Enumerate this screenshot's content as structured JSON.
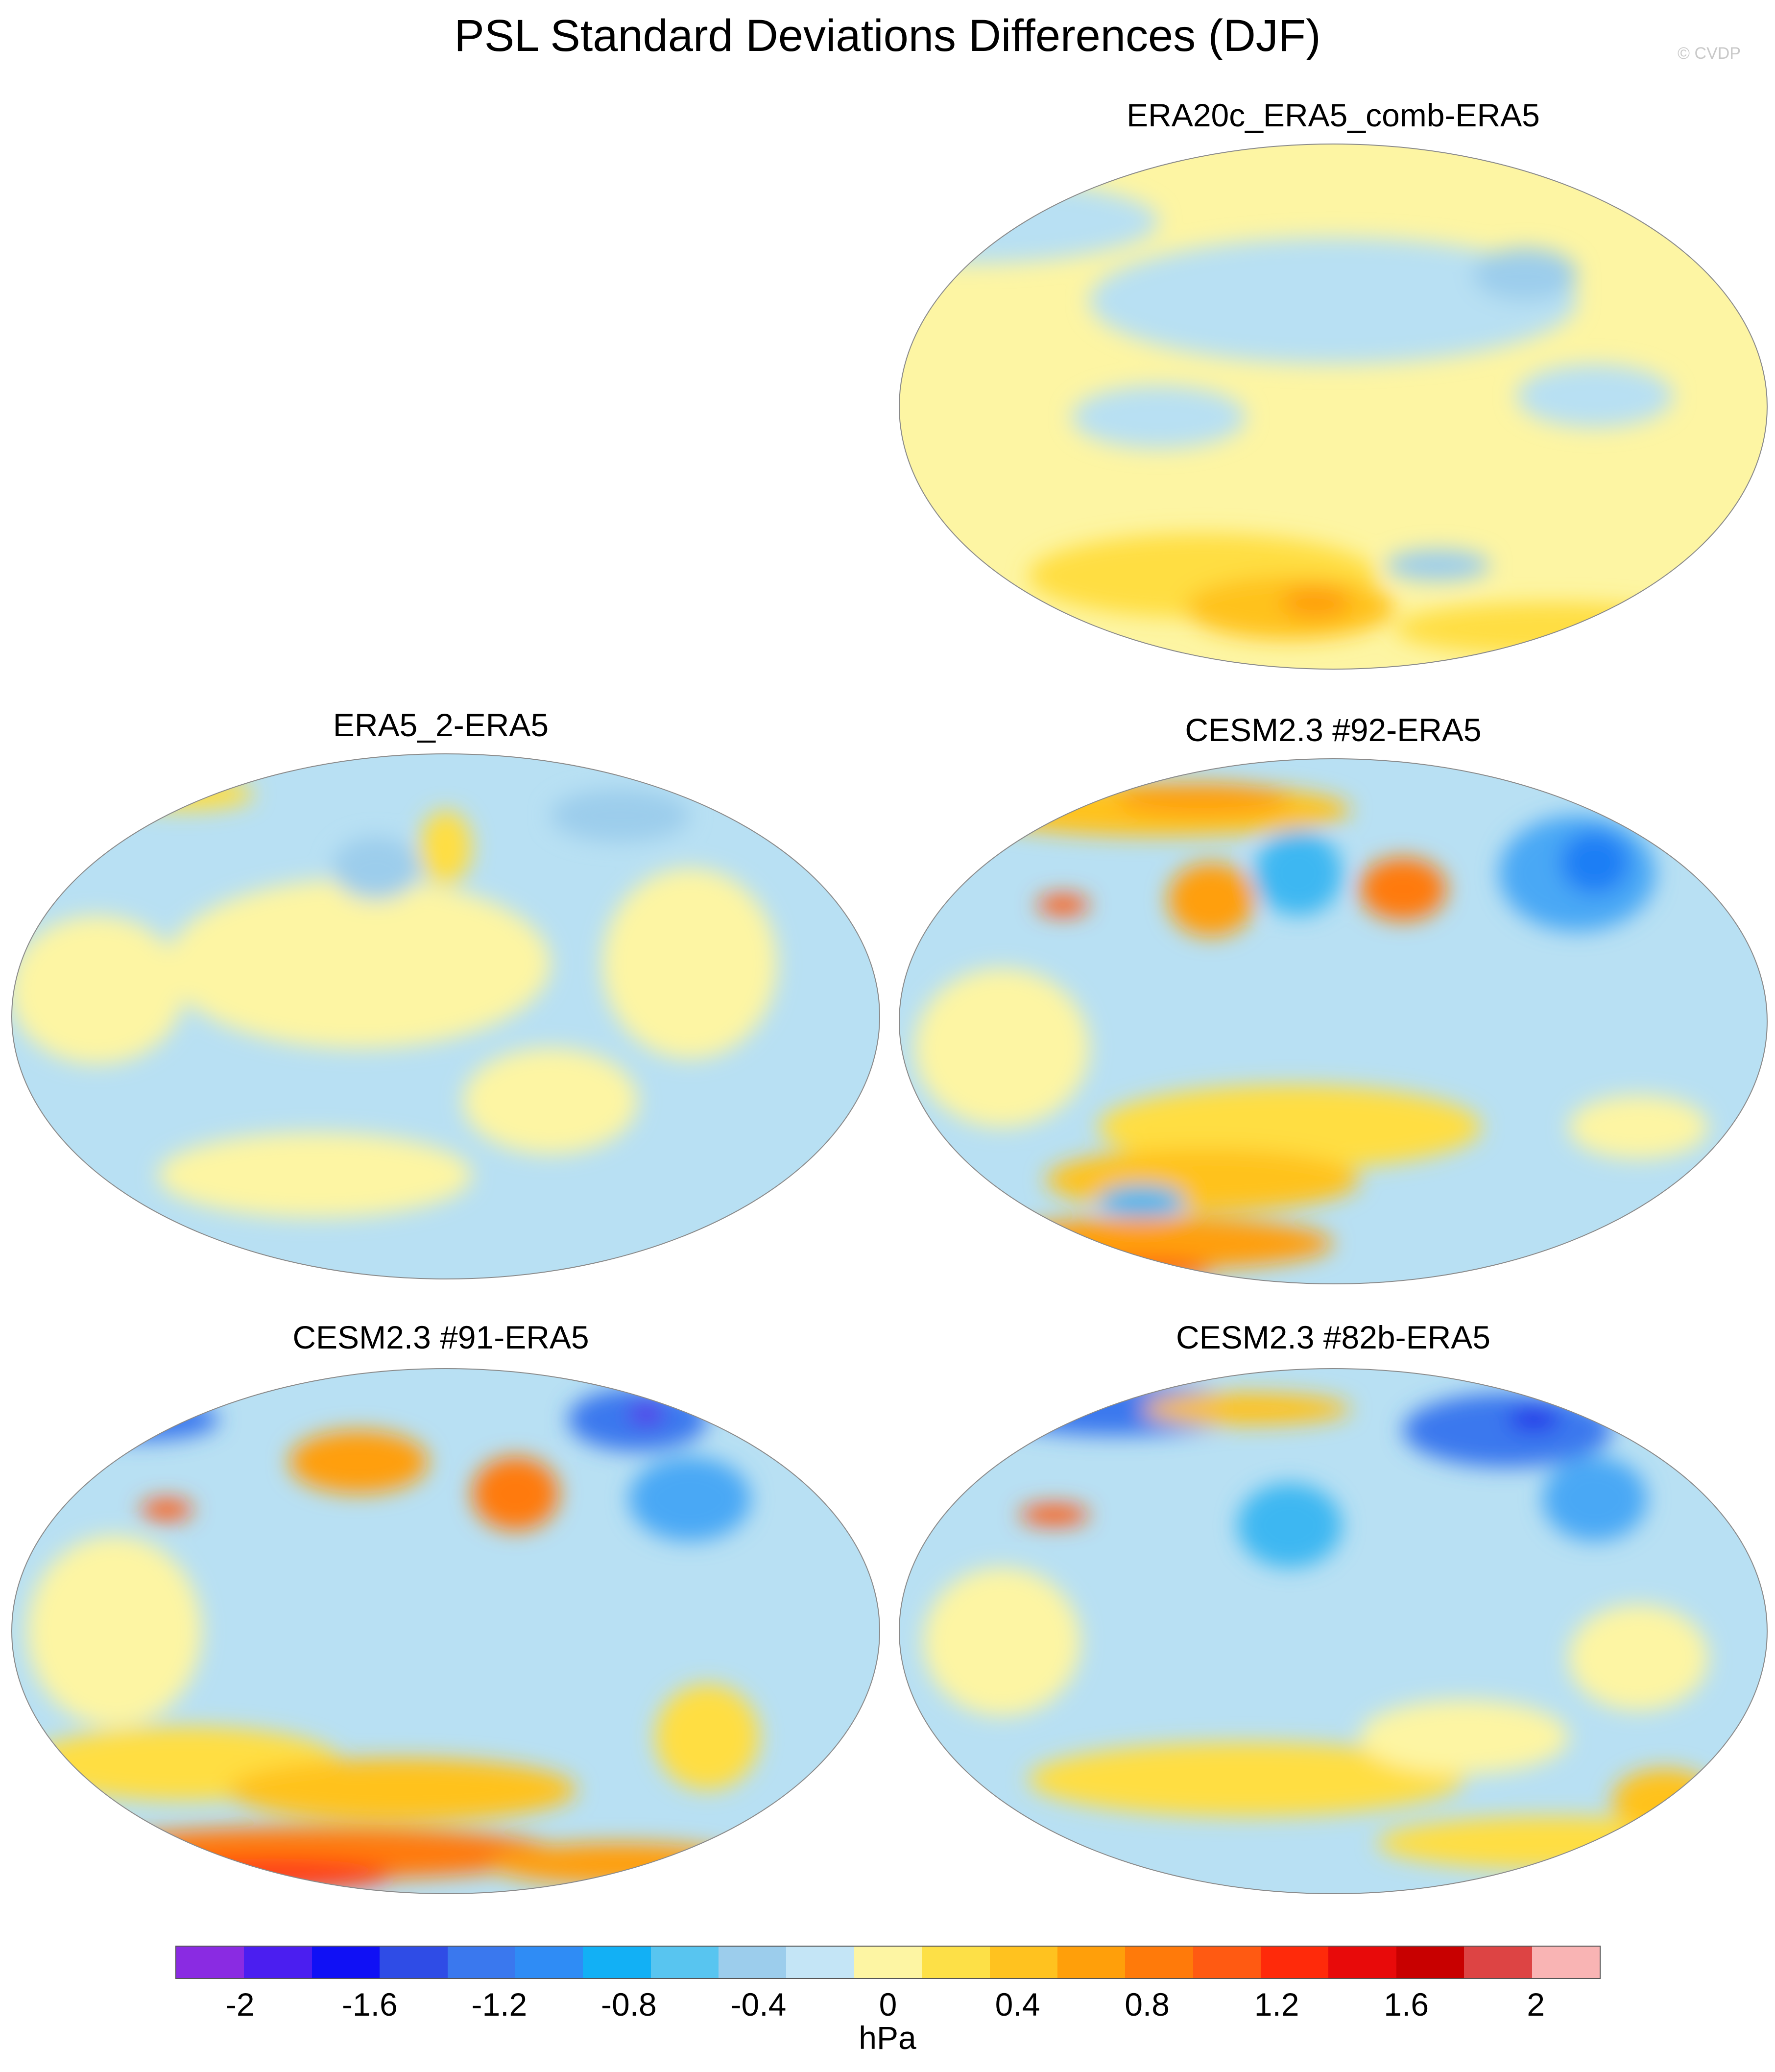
{
  "title": "PSL Standard Deviations Differences (DJF)",
  "credit": "© CVDP",
  "panels": [
    {
      "id": "p1",
      "title": "ERA20c_ERA5_comb-ERA5",
      "base": "#fdf5a3",
      "blobs": [
        [
          "#b8e0f3",
          0.08,
          0.15,
          0.22,
          0.08
        ],
        [
          "#b8e0f3",
          0.5,
          0.3,
          0.28,
          0.12
        ],
        [
          "#9ccdec",
          0.72,
          0.25,
          0.06,
          0.05
        ],
        [
          "#b8e0f3",
          0.3,
          0.52,
          0.1,
          0.06
        ],
        [
          "#b8e0f3",
          0.8,
          0.48,
          0.09,
          0.06
        ],
        [
          "#ffde42",
          0.35,
          0.82,
          0.2,
          0.08
        ],
        [
          "#ffc21f",
          0.45,
          0.88,
          0.12,
          0.06
        ],
        [
          "#ff9f0a",
          0.48,
          0.87,
          0.04,
          0.03
        ],
        [
          "#9ccdec",
          0.62,
          0.8,
          0.06,
          0.03
        ],
        [
          "#ffde42",
          0.75,
          0.92,
          0.18,
          0.05
        ]
      ]
    },
    {
      "id": "p2",
      "title": "ERA5_2-ERA5",
      "base": "#b8e0f3",
      "blobs": [
        [
          "#fdf5a3",
          0.4,
          0.4,
          0.22,
          0.16
        ],
        [
          "#fdf5a3",
          0.1,
          0.45,
          0.1,
          0.14
        ],
        [
          "#fdf5a3",
          0.62,
          0.66,
          0.1,
          0.1
        ],
        [
          "#fdf5a3",
          0.78,
          0.4,
          0.1,
          0.18
        ],
        [
          "#ffde42",
          0.5,
          0.18,
          0.03,
          0.07
        ],
        [
          "#9ccdec",
          0.42,
          0.22,
          0.05,
          0.06
        ],
        [
          "#9ccdec",
          0.7,
          0.12,
          0.08,
          0.05
        ],
        [
          "#fdf5a3",
          0.35,
          0.8,
          0.18,
          0.08
        ],
        [
          "#ffde42",
          0.2,
          0.08,
          0.08,
          0.03
        ]
      ]
    },
    {
      "id": "p3",
      "title": "CESM2.3 #92-ERA5",
      "base": "#b8e0f3",
      "blobs": [
        [
          "#ffc21f",
          0.3,
          0.1,
          0.22,
          0.05
        ],
        [
          "#ff9f0a",
          0.35,
          0.08,
          0.1,
          0.03
        ],
        [
          "#ff9f0a",
          0.36,
          0.27,
          0.05,
          0.07
        ],
        [
          "#3cb7f2",
          0.46,
          0.22,
          0.05,
          0.08
        ],
        [
          "#ff7a0a",
          0.58,
          0.25,
          0.05,
          0.06
        ],
        [
          "#4aa8f5",
          0.78,
          0.22,
          0.09,
          0.11
        ],
        [
          "#1e7ef5",
          0.8,
          0.2,
          0.04,
          0.06
        ],
        [
          "#ff5a12",
          0.19,
          0.28,
          0.03,
          0.02
        ],
        [
          "#fdf5a3",
          0.12,
          0.55,
          0.1,
          0.15
        ],
        [
          "#ffde42",
          0.45,
          0.7,
          0.22,
          0.08
        ],
        [
          "#ffc21f",
          0.35,
          0.8,
          0.18,
          0.06
        ],
        [
          "#ff9f0a",
          0.3,
          0.92,
          0.2,
          0.05
        ],
        [
          "#ff5a12",
          0.28,
          0.97,
          0.08,
          0.02
        ],
        [
          "#3cb7f2",
          0.28,
          0.84,
          0.05,
          0.03
        ],
        [
          "#fdf5a3",
          0.85,
          0.7,
          0.08,
          0.06
        ]
      ]
    },
    {
      "id": "p4",
      "title": "CESM2.3 #91-ERA5",
      "base": "#b8e0f3",
      "blobs": [
        [
          "#3a78ee",
          0.15,
          0.1,
          0.09,
          0.04
        ],
        [
          "#ff9f0a",
          0.4,
          0.18,
          0.08,
          0.06
        ],
        [
          "#ff7a0a",
          0.58,
          0.24,
          0.05,
          0.07
        ],
        [
          "#3a78ee",
          0.72,
          0.1,
          0.08,
          0.06
        ],
        [
          "#5a2be8",
          0.73,
          0.09,
          0.02,
          0.02
        ],
        [
          "#4aa8f5",
          0.78,
          0.25,
          0.07,
          0.08
        ],
        [
          "#ff5a12",
          0.18,
          0.27,
          0.03,
          0.02
        ],
        [
          "#fdf5a3",
          0.12,
          0.5,
          0.1,
          0.18
        ],
        [
          "#ffde42",
          0.2,
          0.75,
          0.18,
          0.07
        ],
        [
          "#ffc21f",
          0.45,
          0.8,
          0.2,
          0.06
        ],
        [
          "#ff7a0a",
          0.35,
          0.92,
          0.28,
          0.05
        ],
        [
          "#ff3b12",
          0.3,
          0.96,
          0.14,
          0.03
        ],
        [
          "#ffde42",
          0.8,
          0.7,
          0.06,
          0.1
        ],
        [
          "#ff9f0a",
          0.7,
          0.94,
          0.15,
          0.04
        ]
      ]
    },
    {
      "id": "p5",
      "title": "CESM2.3 #82b-ERA5",
      "base": "#b8e0f3",
      "blobs": [
        [
          "#3a78ee",
          0.25,
          0.08,
          0.15,
          0.05
        ],
        [
          "#3a78ee",
          0.7,
          0.12,
          0.12,
          0.07
        ],
        [
          "#2020e8",
          0.73,
          0.1,
          0.03,
          0.02
        ],
        [
          "#4aa8f5",
          0.8,
          0.25,
          0.06,
          0.08
        ],
        [
          "#ffc21f",
          0.4,
          0.08,
          0.12,
          0.03
        ],
        [
          "#ff5a12",
          0.18,
          0.28,
          0.04,
          0.02
        ],
        [
          "#3cb7f2",
          0.45,
          0.3,
          0.06,
          0.08
        ],
        [
          "#fdf5a3",
          0.12,
          0.52,
          0.09,
          0.14
        ],
        [
          "#ffde42",
          0.4,
          0.78,
          0.25,
          0.07
        ],
        [
          "#fdf5a3",
          0.65,
          0.7,
          0.12,
          0.07
        ],
        [
          "#ffde42",
          0.75,
          0.9,
          0.2,
          0.05
        ],
        [
          "#ffc21f",
          0.88,
          0.82,
          0.06,
          0.06
        ],
        [
          "#fdf5a3",
          0.85,
          0.55,
          0.08,
          0.1
        ]
      ]
    }
  ],
  "colorbar": {
    "colors": [
      "#8a2be2",
      "#4b1ef0",
      "#1010f5",
      "#2f4ce6",
      "#3a78ee",
      "#2f8cf5",
      "#12b0f5",
      "#58c5f0",
      "#9ccdec",
      "#c4e5f6",
      "#fdf5a3",
      "#fde047",
      "#ffc21f",
      "#ff9f0a",
      "#ff7a0a",
      "#ff5a12",
      "#ff2a0a",
      "#e80a0a",
      "#c80000",
      "#dd4444",
      "#f9b4b4"
    ],
    "tick_labels": [
      "-2",
      "-1.6",
      "-1.2",
      "-0.8",
      "-0.4",
      "0",
      "0.4",
      "0.8",
      "1.2",
      "1.6",
      "2"
    ],
    "tick_values": [
      -2,
      -1.6,
      -1.2,
      -0.8,
      -0.4,
      0,
      0.4,
      0.8,
      1.2,
      1.6,
      2
    ],
    "min": -2.2,
    "max": 2.2,
    "units": "hPa"
  }
}
